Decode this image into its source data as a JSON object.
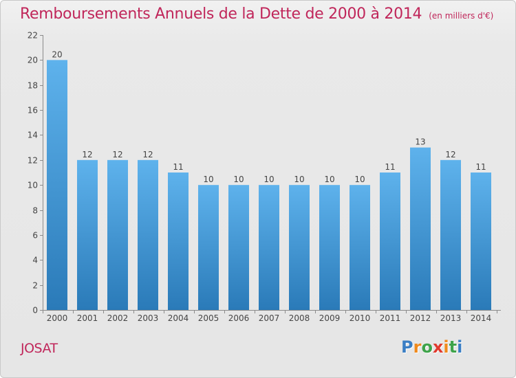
{
  "title": "Remboursements Annuels de la Dette de 2000 à 2014",
  "subtitle": "(en milliers d'€)",
  "town": "JOSAT",
  "logo": {
    "letters": [
      "P",
      "r",
      "o",
      "x",
      "i",
      "t",
      "i"
    ],
    "colors": [
      "#3a7ec4",
      "#f08a1c",
      "#3ea34a",
      "#e03a2e",
      "#f08a1c",
      "#3ea34a",
      "#3a7ec4"
    ]
  },
  "colors": {
    "accent": "#c0265a",
    "bar_top": "#5eb2ec",
    "bar_bottom": "#2a7ab8",
    "background": "#e9e9e9"
  },
  "chart_data": {
    "type": "bar",
    "categories": [
      "2000",
      "2001",
      "2002",
      "2003",
      "2004",
      "2005",
      "2006",
      "2007",
      "2008",
      "2009",
      "2010",
      "2011",
      "2012",
      "2013",
      "2014"
    ],
    "values": [
      20,
      12,
      12,
      12,
      11,
      10,
      10,
      10,
      10,
      10,
      10,
      11,
      13,
      12,
      11
    ],
    "y_ticks": [
      0,
      2,
      4,
      6,
      8,
      10,
      12,
      14,
      16,
      18,
      20,
      22
    ],
    "ylim": [
      0,
      22
    ],
    "grid": false,
    "data_labels": true
  }
}
